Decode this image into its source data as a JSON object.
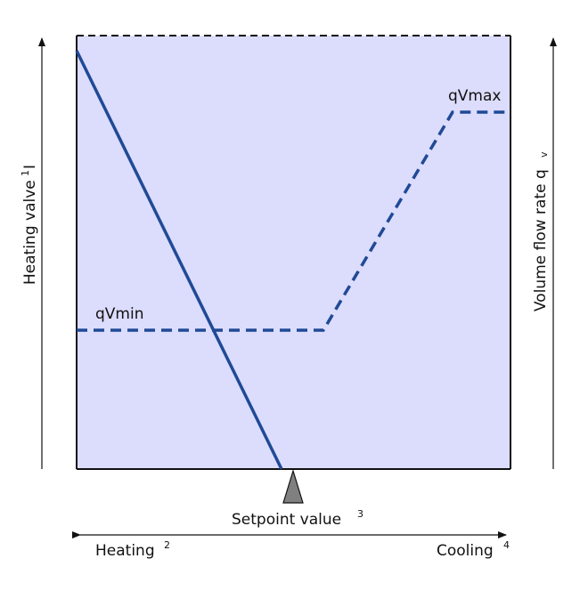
{
  "labels": {
    "left_axis": "Heating valve",
    "left_axis_sup": "1",
    "left_axis_suffix": "I",
    "right_axis": "Volume flow rate q",
    "right_axis_sub": "v",
    "q_max": "qVmax",
    "q_min": "qVmin",
    "setpoint": "Setpoint value",
    "setpoint_sup": "3",
    "heating": "Heating",
    "heating_sup": "2",
    "cooling": "Cooling",
    "cooling_sup": "4"
  },
  "colors": {
    "plot_fill": "#dcdcfc",
    "line": "#1f4a96",
    "frame": "#111111",
    "marker": "#808080"
  }
}
